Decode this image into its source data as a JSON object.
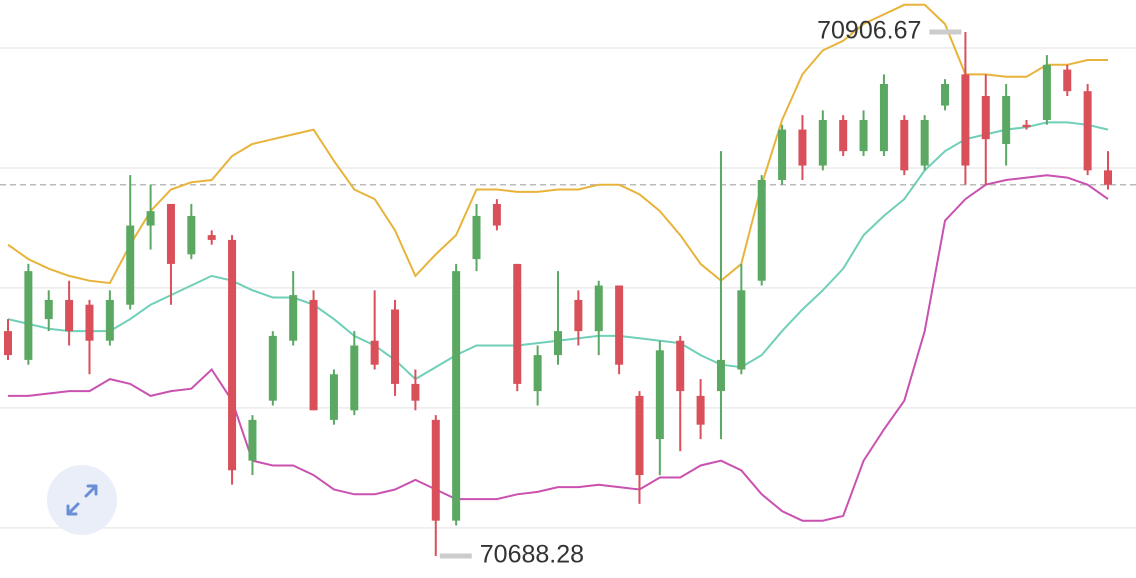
{
  "chart_data": {
    "type": "candlestick",
    "ohlc": [
      [
        70782,
        70787,
        70770,
        70772
      ],
      [
        70770,
        70810,
        70768,
        70807
      ],
      [
        70787,
        70799,
        70782,
        70795
      ],
      [
        70795,
        70803,
        70776,
        70782
      ],
      [
        70793,
        70795,
        70764,
        70778
      ],
      [
        70778,
        70799,
        70776,
        70795
      ],
      [
        70793,
        70847,
        70791,
        70826
      ],
      [
        70826,
        70843,
        70816,
        70832
      ],
      [
        70835,
        70835,
        70793,
        70810
      ],
      [
        70814,
        70835,
        70812,
        70830
      ],
      [
        70822,
        70824,
        70818,
        70820
      ],
      [
        70820,
        70822,
        70718,
        70724
      ],
      [
        70728,
        70747,
        70722,
        70745
      ],
      [
        70753,
        70782,
        70751,
        70780
      ],
      [
        70778,
        70807,
        70776,
        70797
      ],
      [
        70795,
        70799,
        70749,
        70749
      ],
      [
        70745,
        70766,
        70743,
        70764
      ],
      [
        70749,
        70782,
        70747,
        70776
      ],
      [
        70778,
        70799,
        70766,
        70768
      ],
      [
        70791,
        70795,
        70755,
        70760
      ],
      [
        70760,
        70766,
        70749,
        70753
      ],
      [
        70745,
        70747,
        70688.28,
        70703
      ],
      [
        70703,
        70810,
        70701,
        70807
      ],
      [
        70812,
        70835,
        70807,
        70830
      ],
      [
        70835,
        70837,
        70824,
        70826
      ],
      [
        70810,
        70810,
        70757,
        70760
      ],
      [
        70757,
        70776,
        70751,
        70772
      ],
      [
        70772,
        70807,
        70768,
        70782
      ],
      [
        70795,
        70799,
        70776,
        70782
      ],
      [
        70782,
        70803,
        70772,
        70801
      ],
      [
        70801,
        70801,
        70764,
        70768
      ],
      [
        70755,
        70757,
        70710,
        70722
      ],
      [
        70737,
        70778,
        70722,
        70774
      ],
      [
        70778,
        70780,
        70732,
        70757
      ],
      [
        70755,
        70762,
        70737,
        70743
      ],
      [
        70757,
        70857,
        70737,
        70770
      ],
      [
        70766,
        70810,
        70764,
        70799
      ],
      [
        70803,
        70847,
        70801,
        70845
      ],
      [
        70845,
        70868,
        70843,
        70866
      ],
      [
        70866,
        70872,
        70845,
        70851
      ],
      [
        70851,
        70874,
        70849,
        70870
      ],
      [
        70870,
        70872,
        70855,
        70857
      ],
      [
        70857,
        70874,
        70855,
        70870
      ],
      [
        70857,
        70889,
        70855,
        70885
      ],
      [
        70870,
        70872,
        70847,
        70849
      ],
      [
        70851,
        70872,
        70849,
        70870
      ],
      [
        70876,
        70887,
        70874,
        70885
      ],
      [
        70889,
        70906.67,
        70843,
        70851
      ],
      [
        70880,
        70889,
        70843,
        70862
      ],
      [
        70860,
        70885,
        70851,
        70880
      ],
      [
        70868,
        70870,
        70866,
        70867
      ],
      [
        70870,
        70897,
        70868,
        70893
      ],
      [
        70891,
        70893,
        70880,
        70882
      ],
      [
        70882,
        70885,
        70847,
        70849
      ],
      [
        70849,
        70857,
        70841,
        70843
      ]
    ],
    "up_color": "#5aa862",
    "down_color": "#d9505a",
    "bands": [
      {
        "color": "#e8b33a",
        "values": [
          70818,
          70812,
          70808,
          70805,
          70803,
          70802,
          70818,
          70832,
          70841,
          70844,
          70845,
          70855,
          70860,
          70862,
          70864,
          70866,
          70853,
          70841,
          70837,
          70824,
          70805,
          70814,
          70822,
          70841,
          70841,
          70840,
          70840,
          70841,
          70841,
          70843,
          70843,
          70839,
          70832,
          70822,
          70810,
          70803,
          70810,
          70843,
          70870,
          70889,
          70899,
          70903,
          70910,
          70914,
          70918,
          70918,
          70910,
          70889,
          70889,
          70888,
          70888,
          70893,
          70893,
          70895,
          70895
        ]
      },
      {
        "color": "#6fcfb8",
        "values": [
          70787,
          70785,
          70783,
          70782,
          70782,
          70782,
          70787,
          70793,
          70797,
          70801,
          70805,
          70803,
          70799,
          70796,
          70796,
          70793,
          70787,
          70780,
          70776,
          70770,
          70762,
          70767,
          70772,
          70776,
          70776,
          70776,
          70777,
          70778,
          70779,
          70780,
          70780,
          70779,
          70778,
          70777,
          70772,
          70768,
          70767,
          70772,
          70782,
          70791,
          70799,
          70808,
          70822,
          70830,
          70837,
          70849,
          70857,
          70862,
          70864,
          70866,
          70867,
          70869,
          70869,
          70868,
          70866
        ]
      },
      {
        "color": "#c951b0",
        "values": [
          70755,
          70755,
          70756,
          70757,
          70757,
          70762,
          70760,
          70755,
          70757,
          70758,
          70766,
          70753,
          70728,
          70726,
          70726,
          70722,
          70716,
          70714,
          70714,
          70716,
          70720,
          70716,
          70712,
          70712,
          70712,
          70714,
          70715,
          70717,
          70717,
          70718,
          70717,
          70716,
          70721,
          70721,
          70726,
          70728,
          70724,
          70714,
          70707,
          70703,
          70703,
          70705,
          70728,
          70741,
          70753,
          70782,
          70828,
          70837,
          70843,
          70845,
          70846,
          70847,
          70846,
          70843,
          70837
        ]
      }
    ],
    "ylim": [
      70679.1,
      70920
    ],
    "yticks": [
      70700,
      70750,
      70800,
      70850,
      70900
    ],
    "grid": true
  }
}
